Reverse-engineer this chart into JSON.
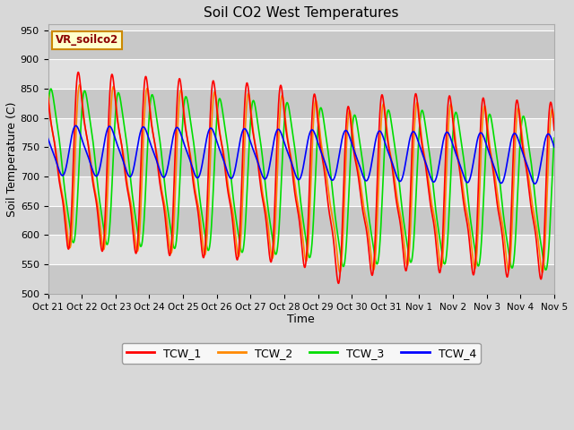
{
  "title": "Soil CO2 West Temperatures",
  "xlabel": "Time",
  "ylabel": "Soil Temperature (C)",
  "ylim": [
    500,
    960
  ],
  "background_color": "#d8d8d8",
  "plot_bg_color": "#d8d8d8",
  "tick_labels": [
    "Oct 21",
    "Oct 22",
    "Oct 23",
    "Oct 24",
    "Oct 25",
    "Oct 26",
    "Oct 27",
    "Oct 28",
    "Oct 29",
    "Oct 30",
    "Oct 31",
    "Nov 1",
    "Nov 2",
    "Nov 3",
    "Nov 4",
    "Nov 5"
  ],
  "tick_positions": [
    0,
    24,
    48,
    72,
    96,
    120,
    144,
    168,
    192,
    216,
    240,
    264,
    288,
    312,
    336,
    360
  ],
  "colors": {
    "TCW_1": "#ff0000",
    "TCW_2": "#ff8800",
    "TCW_3": "#00dd00",
    "TCW_4": "#0000ff"
  },
  "legend_label": "VR_soilco2",
  "series_labels": [
    "TCW_1",
    "TCW_2",
    "TCW_3",
    "TCW_4"
  ],
  "line_width": 1.2,
  "yticks": [
    500,
    550,
    600,
    650,
    700,
    750,
    800,
    850,
    900,
    950
  ]
}
